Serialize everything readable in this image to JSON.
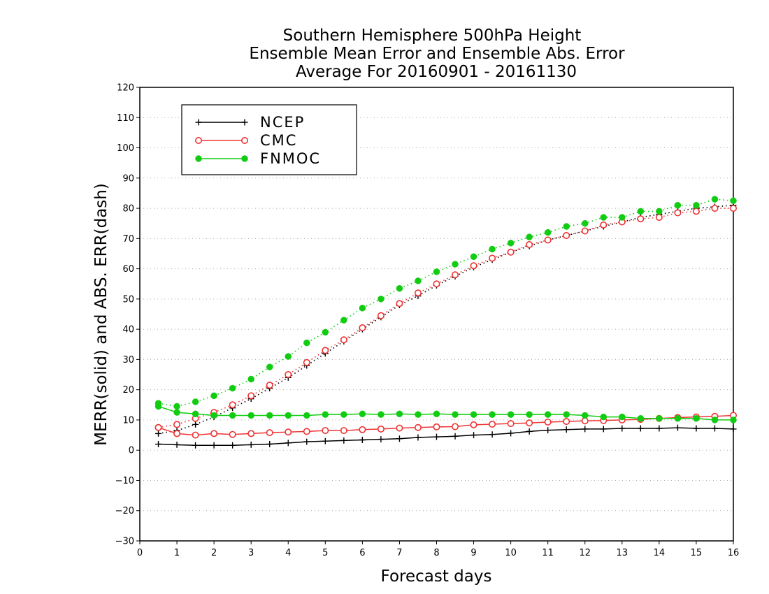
{
  "chart_data": {
    "type": "line",
    "title": [
      "Southern Hemisphere 500hPa Height",
      "Ensemble Mean Error and Ensemble Abs. Error",
      "Average For 20160901 - 20161130"
    ],
    "xlabel": "Forecast days",
    "ylabel": "MERR(solid) and ABS. ERR(dash)",
    "xlim": [
      0,
      16
    ],
    "ylim": [
      -30,
      120
    ],
    "xticks": [
      "0",
      "1",
      "2",
      "3",
      "4",
      "5",
      "6",
      "7",
      "8",
      "9",
      "10",
      "11",
      "12",
      "13",
      "14",
      "15",
      "16"
    ],
    "yticks": [
      "120",
      "110",
      "100",
      "90",
      "80",
      "70",
      "60",
      "50",
      "40",
      "30",
      "20",
      "10",
      "0",
      "−10",
      "−20",
      "−30"
    ],
    "grid": "horizontal dotted",
    "legend_position": "top-left",
    "x": [
      0.5,
      1,
      1.5,
      2,
      2.5,
      3,
      3.5,
      4,
      4.5,
      5,
      5.5,
      6,
      6.5,
      7,
      7.5,
      8,
      8.5,
      9,
      9.5,
      10,
      10.5,
      11,
      11.5,
      12,
      12.5,
      13,
      13.5,
      14,
      14.5,
      15,
      15.5,
      16
    ],
    "series": [
      {
        "name": "NCEP",
        "color": "#000000",
        "marker": "plus",
        "merr": [
          2,
          1.8,
          1.6,
          1.6,
          1.6,
          1.8,
          2,
          2.4,
          2.8,
          3,
          3.2,
          3.4,
          3.6,
          3.8,
          4.2,
          4.4,
          4.6,
          5,
          5.2,
          5.6,
          6.2,
          6.6,
          6.8,
          7,
          7,
          7.2,
          7.2,
          7.2,
          7.4,
          7.2,
          7.2,
          7
        ],
        "abs_err": [
          5.5,
          6.5,
          8.5,
          11,
          14,
          17,
          20.5,
          24,
          28,
          32,
          36,
          40,
          44,
          48,
          51,
          54.5,
          57.5,
          60.5,
          63,
          65.5,
          67.5,
          69.5,
          71,
          72.5,
          74,
          75.5,
          77,
          78,
          79,
          80,
          80.5,
          81
        ]
      },
      {
        "name": "CMC",
        "color": "#ee3333",
        "marker": "open-circle",
        "merr": [
          7.5,
          5.5,
          5,
          5.5,
          5.2,
          5.5,
          5.8,
          6,
          6.2,
          6.5,
          6.5,
          6.8,
          7,
          7.3,
          7.5,
          7.7,
          7.8,
          8.4,
          8.6,
          8.8,
          9,
          9.3,
          9.5,
          9.7,
          9.8,
          10,
          10.2,
          10.5,
          10.8,
          11,
          11.2,
          11.5
        ],
        "abs_err": [
          7.5,
          8.5,
          10.5,
          12.5,
          15,
          18,
          21.5,
          25,
          29,
          33,
          36.5,
          40.5,
          44.5,
          48.5,
          52,
          55,
          58,
          61,
          63.5,
          65.5,
          68,
          69.5,
          71,
          72.5,
          74.5,
          75.5,
          76.5,
          77,
          78.5,
          79,
          80,
          80
        ]
      },
      {
        "name": "FNMOC",
        "color": "#11cc11",
        "marker": "filled-circle",
        "merr": [
          14.5,
          12.5,
          12,
          11.5,
          11.5,
          11.5,
          11.5,
          11.5,
          11.5,
          11.8,
          11.8,
          12,
          11.8,
          12,
          11.8,
          12,
          11.8,
          11.8,
          11.8,
          11.8,
          11.8,
          11.8,
          11.8,
          11.5,
          11,
          11,
          10.5,
          10.5,
          10.5,
          10.5,
          10,
          10
        ],
        "abs_err": [
          15.5,
          14.5,
          16,
          18,
          20.5,
          23.5,
          27.5,
          31,
          35.5,
          39,
          43,
          47,
          50,
          53.5,
          56,
          59,
          61.5,
          64,
          66.5,
          68.5,
          70.5,
          72,
          74,
          75,
          77,
          77,
          79,
          79,
          81,
          81,
          83,
          82.5
        ]
      }
    ]
  }
}
